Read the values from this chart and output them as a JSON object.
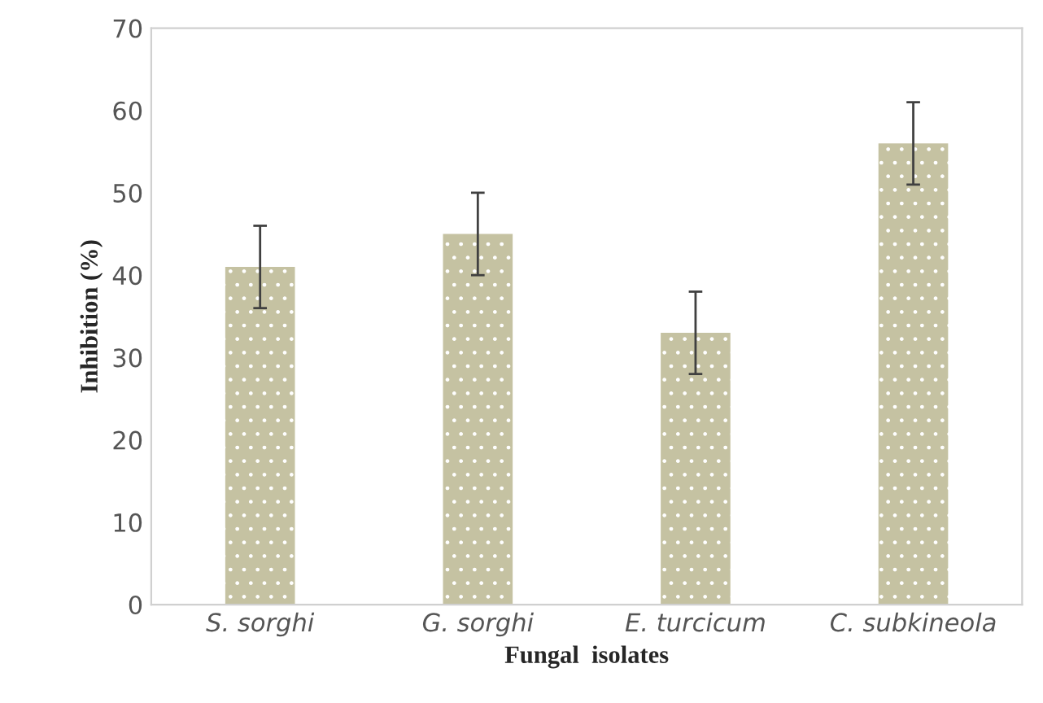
{
  "chart_data": {
    "type": "bar",
    "xlabel": "Fungal  isolates",
    "ylabel": "Inhibition (%)",
    "categories": [
      "S. sorghi",
      "G. sorghi",
      "E. turcicum",
      "C. subkineola"
    ],
    "values": [
      41,
      45,
      33,
      56
    ],
    "errors": [
      5,
      5,
      5,
      5
    ],
    "color": "#c5c2a2",
    "ylim": [
      0,
      70
    ],
    "yticks": [
      0,
      10,
      20,
      30,
      40,
      50,
      60,
      70
    ],
    "grid": false,
    "legend": false
  }
}
